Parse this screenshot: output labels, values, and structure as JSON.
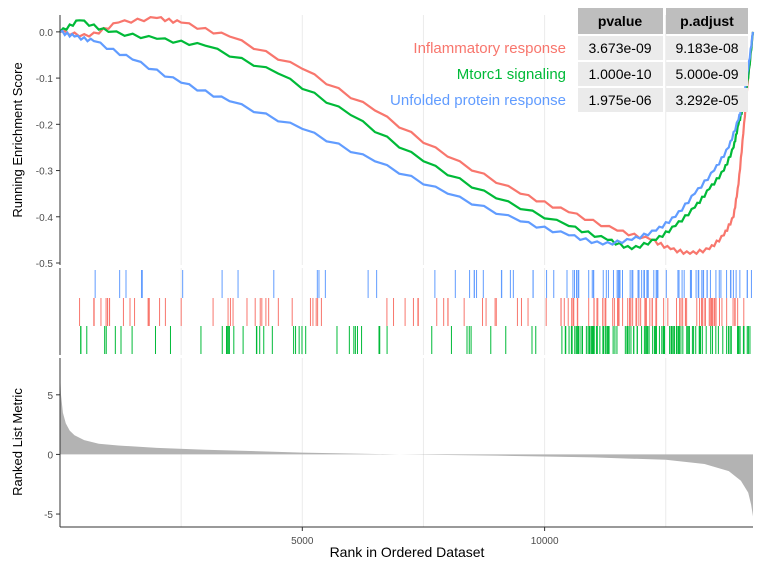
{
  "chart_data": [
    {
      "panel": "running-enrichment",
      "type": "line",
      "ylabel": "Running Enrichment Score",
      "xlim": [
        0,
        14300
      ],
      "ylim": [
        -0.5,
        0.03
      ],
      "yticks": [
        0.0,
        -0.1,
        -0.2,
        -0.3,
        -0.4,
        -0.5
      ],
      "ytick_labels": [
        "0.0",
        "-0.1",
        "-0.2",
        "-0.3",
        "-0.4",
        "-0.5"
      ],
      "xgrid": [
        2500,
        5000,
        7500,
        10000,
        12500
      ],
      "series": [
        {
          "name": "Inflammatory response",
          "color": "#F8766D",
          "x": [
            0,
            600,
            1200,
            2000,
            2500,
            3500,
            5000,
            6500,
            8000,
            9500,
            10500,
            11500,
            12200,
            12600,
            13000,
            13400,
            13700,
            13900,
            14000,
            14100,
            14200,
            14300
          ],
          "y": [
            0,
            -0.01,
            0.02,
            0.03,
            0.02,
            -0.01,
            -0.08,
            -0.17,
            -0.27,
            -0.35,
            -0.39,
            -0.43,
            -0.45,
            -0.47,
            -0.48,
            -0.47,
            -0.44,
            -0.4,
            -0.33,
            -0.22,
            -0.1,
            0
          ]
        },
        {
          "name": "Mtorc1 signaling",
          "color": "#00BA38",
          "x": [
            0,
            400,
            1000,
            2000,
            3000,
            4500,
            6000,
            7500,
            9000,
            10500,
            11300,
            11800,
            12300,
            12700,
            13100,
            13400,
            13700,
            13900,
            14000,
            14100,
            14200,
            14300
          ],
          "y": [
            0,
            0.025,
            0.0,
            -0.015,
            -0.03,
            -0.09,
            -0.18,
            -0.28,
            -0.36,
            -0.42,
            -0.45,
            -0.47,
            -0.45,
            -0.42,
            -0.38,
            -0.34,
            -0.3,
            -0.25,
            -0.2,
            -0.16,
            -0.1,
            0
          ]
        },
        {
          "name": "Unfolded protein response",
          "color": "#619CFF",
          "x": [
            0,
            300,
            700,
            1500,
            2500,
            3500,
            5000,
            6500,
            8000,
            9500,
            10500,
            11200,
            11800,
            12300,
            12700,
            13100,
            13500,
            13800,
            14000,
            14100,
            14200,
            14300
          ],
          "y": [
            0,
            -0.01,
            -0.02,
            -0.06,
            -0.11,
            -0.15,
            -0.21,
            -0.28,
            -0.35,
            -0.41,
            -0.44,
            -0.46,
            -0.45,
            -0.43,
            -0.4,
            -0.35,
            -0.3,
            -0.25,
            -0.19,
            -0.15,
            -0.08,
            0
          ]
        }
      ]
    },
    {
      "panel": "hit-positions",
      "type": "scatter",
      "note_rows": [
        "Unfolded protein response",
        "Inflammatory response",
        "Mtorc1 signaling"
      ]
    },
    {
      "panel": "ranked-list",
      "type": "area",
      "ylabel": "Ranked List Metric",
      "xlabel": "Rank in Ordered Dataset",
      "xlim": [
        0,
        14300
      ],
      "ylim": [
        -5.5,
        7.5
      ],
      "yticks": [
        5,
        0,
        -5
      ],
      "ytick_labels": [
        "5",
        "0",
        "-5"
      ],
      "xticks": [
        5000,
        10000
      ],
      "xtick_labels": [
        "5000",
        "10000"
      ],
      "color": "#B3B3B3",
      "x": [
        0,
        20,
        60,
        120,
        200,
        300,
        500,
        800,
        1200,
        2000,
        3000,
        5000,
        7000,
        9000,
        11000,
        12500,
        13300,
        13800,
        14050,
        14200,
        14260,
        14300
      ],
      "y": [
        7.0,
        5.0,
        3.5,
        2.6,
        2.0,
        1.6,
        1.2,
        0.9,
        0.75,
        0.55,
        0.4,
        0.15,
        0.0,
        -0.1,
        -0.25,
        -0.45,
        -0.8,
        -1.4,
        -2.2,
        -3.2,
        -4.2,
        -5.2
      ]
    }
  ],
  "table": {
    "headers": [
      "pvalue",
      "p.adjust"
    ],
    "rows": [
      {
        "name": "Inflammatory response",
        "pvalue": "3.673e-09",
        "padjust": "9.183e-08",
        "color": "#F8766D"
      },
      {
        "name": "Mtorc1 signaling",
        "pvalue": "1.000e-10",
        "padjust": "5.000e-09",
        "color": "#00BA38"
      },
      {
        "name": "Unfolded protein response",
        "pvalue": "1.975e-06",
        "padjust": "3.292e-05",
        "color": "#619CFF"
      }
    ]
  }
}
